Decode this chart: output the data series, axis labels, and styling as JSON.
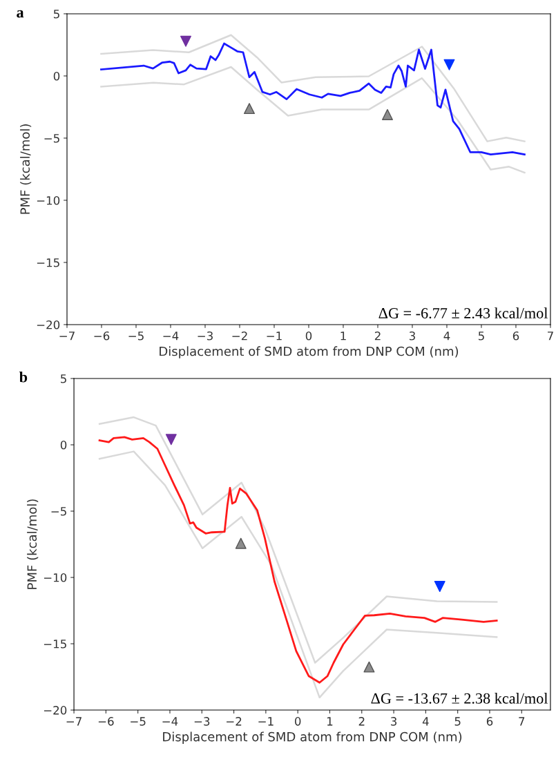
{
  "chart_data": [
    {
      "type": "line",
      "title": "a",
      "xlabel": "Displacement of SMD atom from DNP COM (nm)",
      "ylabel": "PMF (kcal/mol)",
      "xlim": [
        -7,
        7
      ],
      "ylim": [
        -20,
        5
      ],
      "xticks": [
        {
          "value": -7,
          "label": "−7"
        },
        {
          "value": -6,
          "label": "−6"
        },
        {
          "value": -5,
          "label": "−5"
        },
        {
          "value": -4,
          "label": "−4"
        },
        {
          "value": -3,
          "label": "−3"
        },
        {
          "value": -2,
          "label": "−2"
        },
        {
          "value": -1,
          "label": "−1"
        },
        0,
        1,
        2,
        3,
        4,
        5,
        6,
        7
      ],
      "yticks": [
        {
          "value": -20,
          "label": "−20"
        },
        {
          "value": -15,
          "label": "−15"
        },
        {
          "value": -10,
          "label": "−10"
        },
        {
          "value": -5,
          "label": "−5"
        },
        0,
        5
      ],
      "annotations": [
        "ΔG = -6.77 ± 2.43 kcal/mol"
      ],
      "series": [
        {
          "color": "#d9d9d9",
          "x": [
            -6.01,
            -4.51,
            -3.47,
            -2.25,
            -1.5,
            -0.79,
            0.2,
            1.74,
            3.28,
            4.2,
            5.17,
            5.72,
            6.25
          ],
          "values": [
            1.78,
            2.08,
            1.9,
            3.29,
            1.5,
            -0.53,
            -0.1,
            -0.03,
            2.36,
            -1.0,
            -5.26,
            -4.96,
            -5.26
          ]
        },
        {
          "color": "#d9d9d9",
          "x": [
            -6.01,
            -4.5,
            -3.61,
            -2.25,
            -1.5,
            -0.6,
            0.38,
            1.74,
            3.28,
            4.3,
            5.27,
            5.8,
            6.25
          ],
          "values": [
            -0.86,
            -0.55,
            -0.68,
            0.72,
            -1.1,
            -3.2,
            -2.7,
            -2.7,
            -0.18,
            -3.5,
            -7.53,
            -7.3,
            -7.78
          ]
        },
        {
          "color": "#1a1aff",
          "x": [
            -6.01,
            -4.78,
            -4.51,
            -4.24,
            -4.02,
            -3.9,
            -3.77,
            -3.56,
            -3.43,
            -3.25,
            -2.97,
            -2.84,
            -2.7,
            -2.61,
            -2.45,
            -2.25,
            -2.07,
            -1.9,
            -1.72,
            -1.57,
            -1.34,
            -1.12,
            -0.94,
            -0.64,
            -0.35,
            0.02,
            0.38,
            0.56,
            0.92,
            1.19,
            1.47,
            1.74,
            1.92,
            2.1,
            2.24,
            2.37,
            2.46,
            2.6,
            2.69,
            2.81,
            2.87,
            3.05,
            3.19,
            3.37,
            3.55,
            3.73,
            3.82,
            3.96,
            4.18,
            4.36,
            4.68,
            5.0,
            5.27,
            5.9,
            6.25
          ],
          "values": [
            0.52,
            0.83,
            0.6,
            1.08,
            1.15,
            1.03,
            0.22,
            0.45,
            0.9,
            0.6,
            0.55,
            1.58,
            1.28,
            1.66,
            2.61,
            2.28,
            1.98,
            1.9,
            -0.1,
            0.32,
            -1.29,
            -1.49,
            -1.29,
            -1.87,
            -1.06,
            -1.49,
            -1.74,
            -1.44,
            -1.61,
            -1.36,
            -1.19,
            -0.61,
            -1.11,
            -1.36,
            -0.86,
            -0.93,
            0.14,
            0.83,
            0.4,
            -0.86,
            0.83,
            0.45,
            2.11,
            0.57,
            2.11,
            -2.37,
            -2.54,
            -1.11,
            -3.63,
            -4.26,
            -6.14,
            -6.14,
            -6.32,
            -6.14,
            -6.32
          ]
        },
        {
          "type": "scatter",
          "marker": "triangle_down",
          "color": "#7030a0",
          "x": [
            -3.56
          ],
          "values": [
            2.79
          ]
        },
        {
          "type": "scatter",
          "marker": "triangle",
          "color": "#8c8c8c",
          "x": [
            -1.72,
            2.28
          ],
          "values": [
            -2.62,
            -3.11
          ]
        },
        {
          "type": "scatter",
          "marker": "triangle_down",
          "color": "#0033ff",
          "x": [
            4.07
          ],
          "values": [
            0.9
          ]
        }
      ]
    },
    {
      "type": "line",
      "title": "b",
      "xlabel": "Displacement of SMD atom from DNP COM (nm)",
      "ylabel": "PMF (kcal/mol)",
      "xlim": [
        -7,
        7.9
      ],
      "ylim": [
        -20,
        5
      ],
      "xticks": [
        {
          "value": -7,
          "label": "−7"
        },
        {
          "value": -6,
          "label": "−6"
        },
        {
          "value": -5,
          "label": "−5"
        },
        {
          "value": -4,
          "label": "−4"
        },
        {
          "value": -3,
          "label": "−3"
        },
        {
          "value": -2,
          "label": "−2"
        },
        {
          "value": -1,
          "label": "−1"
        },
        0,
        1,
        2,
        3,
        4,
        5,
        6,
        7
      ],
      "yticks": [
        {
          "value": -20,
          "label": "−20"
        },
        {
          "value": -15,
          "label": "−15"
        },
        {
          "value": -10,
          "label": "−10"
        },
        {
          "value": -5,
          "label": "−5"
        },
        0,
        5
      ],
      "annotations": [
        "ΔG = -13.67 ± 2.38 kcal/mol"
      ],
      "series": [
        {
          "color": "#d9d9d9",
          "x": [
            -6.2,
            -5.13,
            -4.44,
            -2.98,
            -1.76,
            -1.03,
            0.54,
            1.42,
            2.78,
            4.35,
            6.22
          ],
          "values": [
            1.58,
            2.08,
            1.45,
            -5.25,
            -2.85,
            -6.3,
            -16.43,
            -14.55,
            -11.43,
            -11.8,
            -11.85
          ]
        },
        {
          "color": "#d9d9d9",
          "x": [
            -6.2,
            -5.13,
            -4.15,
            -2.98,
            -1.76,
            -0.83,
            0.68,
            1.42,
            2.78,
            4.35,
            6.22
          ],
          "values": [
            -1.05,
            -0.5,
            -3.05,
            -7.8,
            -5.43,
            -9.05,
            -19.05,
            -17.05,
            -13.93,
            -14.18,
            -14.5
          ]
        },
        {
          "color": "#ff1a1a",
          "x": [
            -6.2,
            -5.91,
            -5.76,
            -5.42,
            -5.18,
            -4.83,
            -4.64,
            -4.39,
            -4.15,
            -3.86,
            -3.56,
            -3.37,
            -3.27,
            -3.17,
            -2.88,
            -2.69,
            -2.29,
            -2.2,
            -2.12,
            -2.05,
            -1.95,
            -1.81,
            -1.61,
            -1.27,
            -1.03,
            -0.73,
            -0.34,
            -0.05,
            0.34,
            0.68,
            0.93,
            1.12,
            1.42,
            1.81,
            2.1,
            2.39,
            2.88,
            3.37,
            3.96,
            4.3,
            4.54,
            5.13,
            5.81,
            6.22
          ],
          "values": [
            0.33,
            0.2,
            0.5,
            0.58,
            0.4,
            0.5,
            0.2,
            -0.3,
            -1.55,
            -3.05,
            -4.55,
            -5.93,
            -5.85,
            -6.25,
            -6.68,
            -6.6,
            -6.55,
            -4.55,
            -3.25,
            -4.43,
            -4.3,
            -3.3,
            -3.68,
            -4.93,
            -7.05,
            -10.3,
            -13.3,
            -15.55,
            -17.43,
            -17.93,
            -17.43,
            -16.43,
            -15.05,
            -13.8,
            -12.88,
            -12.85,
            -12.73,
            -12.93,
            -13.05,
            -13.35,
            -13.05,
            -13.18,
            -13.35,
            -13.25
          ]
        },
        {
          "type": "scatter",
          "marker": "triangle_down",
          "color": "#7030a0",
          "x": [
            -3.96
          ],
          "values": [
            0.4
          ]
        },
        {
          "type": "scatter",
          "marker": "triangle",
          "color": "#8c8c8c",
          "x": [
            -1.78,
            2.23
          ],
          "values": [
            -7.43,
            -16.75
          ]
        },
        {
          "type": "scatter",
          "marker": "triangle_down",
          "color": "#0033ff",
          "x": [
            4.44
          ],
          "values": [
            -10.68
          ]
        }
      ]
    }
  ]
}
